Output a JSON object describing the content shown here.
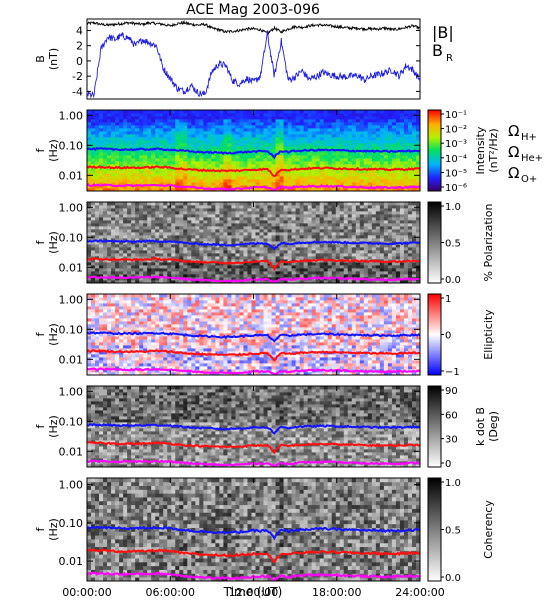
{
  "title": "ACE Mag 2003-096",
  "xaxis": {
    "label": "Time (UT)",
    "ticks": [
      "00:00:00",
      "06:00:00",
      "12:00:00",
      "18:00:00",
      "24:00:00"
    ],
    "range_hours": [
      0,
      24
    ]
  },
  "colors": {
    "B_total": "#000000",
    "B_R": "#1f1fe0",
    "H_plus": "#1414ff",
    "He_plus": "#ff1010",
    "O_plus": "#ff00ff"
  },
  "chart_data": [
    {
      "type": "line",
      "panel": "magnetic-field",
      "ylabel_line1": "B",
      "ylabel_line2": "(nT)",
      "ylim": [
        -5,
        5.5
      ],
      "yticks": [
        "4",
        "2",
        "0",
        "-2",
        "-4"
      ],
      "ytick_values": [
        4,
        2,
        0,
        -2,
        -4
      ],
      "legend": [
        "|B|",
        "B"
      ],
      "legend_subscript": "R",
      "legend_placement": "right",
      "series": [
        {
          "name": "|B|",
          "x": [
            0,
            0.5,
            1,
            1.5,
            2,
            2.5,
            3,
            3.5,
            4,
            4.5,
            5,
            5.5,
            6,
            6.5,
            7,
            7.5,
            8,
            8.5,
            9,
            9.5,
            10,
            10.5,
            11,
            11.5,
            12,
            12.5,
            13,
            13.5,
            14,
            14.5,
            15,
            15.5,
            16,
            16.5,
            17,
            17.5,
            18,
            18.5,
            19,
            19.5,
            20,
            20.5,
            21,
            21.5,
            22,
            22.5,
            23,
            23.5,
            24
          ],
          "values": [
            4.9,
            5.0,
            4.8,
            4.7,
            4.8,
            4.9,
            5.0,
            4.9,
            4.8,
            5.0,
            4.9,
            4.8,
            4.6,
            4.9,
            5.0,
            4.8,
            4.7,
            4.8,
            4.3,
            4.1,
            3.8,
            3.9,
            4.0,
            4.2,
            4.2,
            4.1,
            3.6,
            4.3,
            3.8,
            4.2,
            4.5,
            4.4,
            4.6,
            4.7,
            4.7,
            4.6,
            4.5,
            4.4,
            4.3,
            4.3,
            4.2,
            4.2,
            4.2,
            4.3,
            4.1,
            4.2,
            4.4,
            4.6,
            4.3
          ]
        },
        {
          "name": "B_R",
          "x": [
            0,
            0.5,
            1,
            1.5,
            2,
            2.5,
            3,
            3.5,
            4,
            4.5,
            5,
            5.5,
            6,
            6.5,
            7,
            7.5,
            8,
            8.5,
            9,
            9.5,
            10,
            10.5,
            11,
            11.5,
            12,
            12.5,
            13,
            13.5,
            14,
            14.5,
            15,
            15.5,
            16,
            16.5,
            17,
            17.5,
            18,
            18.5,
            19,
            19.5,
            20,
            20.5,
            21,
            21.5,
            22,
            22.5,
            23,
            23.5,
            24
          ],
          "values": [
            -4.3,
            -4.6,
            1.5,
            3.2,
            2.8,
            3.3,
            3.0,
            2.0,
            2.8,
            2.4,
            2.0,
            -1.0,
            -2.3,
            -3.6,
            -4.0,
            -3.2,
            -4.2,
            -4.4,
            -1.4,
            -0.4,
            -0.6,
            -2.6,
            -3.0,
            -2.3,
            -2.8,
            -2.0,
            3.6,
            -2.0,
            2.6,
            -2.5,
            -2.1,
            -1.3,
            -2.4,
            -2.1,
            -1.5,
            -1.8,
            -2.0,
            -2.1,
            -2.0,
            -1.9,
            -2.5,
            -2.0,
            -1.8,
            -1.5,
            -1.2,
            -2.0,
            -0.6,
            -1.2,
            -2.5
          ]
        }
      ]
    },
    {
      "type": "heatmap",
      "panel": "intensity",
      "ylabel_line1": "f",
      "ylabel_line2": "(Hz)",
      "yscale": "log",
      "ylim": [
        0.003,
        1.5
      ],
      "yticks": [
        "1.00",
        "0.10",
        "0.01"
      ],
      "ytick_values": [
        1,
        0.1,
        0.01
      ],
      "colorbar": {
        "label_line1": "Intensity",
        "label_line2": "(nT²/Hz)",
        "ticks": [
          "10⁻¹",
          "10⁻²",
          "10⁻³",
          "10⁻⁴",
          "10⁻⁵",
          "10⁻⁶"
        ],
        "scale": "rainbow"
      },
      "legend": {
        "h_symbol": "Ω",
        "h_sub": "H+",
        "he_symbol": "Ω",
        "he_sub": "He+",
        "o_symbol": "Ω",
        "o_sub": "O+"
      }
    },
    {
      "type": "heatmap",
      "panel": "polarization",
      "ylabel_line1": "f",
      "ylabel_line2": "(Hz)",
      "yscale": "log",
      "ylim": [
        0.003,
        1.5
      ],
      "yticks": [
        "1.00",
        "0.10",
        "0.01"
      ],
      "ytick_values": [
        1,
        0.1,
        0.01
      ],
      "colorbar": {
        "label_line1": "% Polarization",
        "label_line2": "",
        "ticks": [
          "1.0",
          "0.5",
          "0.0"
        ],
        "scale": "gray"
      }
    },
    {
      "type": "heatmap",
      "panel": "ellipticity",
      "ylabel_line1": "f",
      "ylabel_line2": "(Hz)",
      "yscale": "log",
      "ylim": [
        0.003,
        1.5
      ],
      "yticks": [
        "1.00",
        "0.10",
        "0.01"
      ],
      "ytick_values": [
        1,
        0.1,
        0.01
      ],
      "colorbar": {
        "label_line1": "Ellipticity",
        "label_line2": "",
        "ticks": [
          "1",
          "0",
          "−1"
        ],
        "scale": "bwr"
      }
    },
    {
      "type": "heatmap",
      "panel": "k-dot-b",
      "ylabel_line1": "f",
      "ylabel_line2": "(Hz)",
      "yscale": "log",
      "ylim": [
        0.003,
        1.5
      ],
      "yticks": [
        "1.00",
        "0.10",
        "0.01"
      ],
      "ytick_values": [
        1,
        0.1,
        0.01
      ],
      "colorbar": {
        "label_line1": "k dot B",
        "label_line2": "(Deg)",
        "ticks": [
          "90",
          "60",
          "30",
          "0"
        ],
        "scale": "gray"
      }
    },
    {
      "type": "heatmap",
      "panel": "coherency",
      "ylabel_line1": "f",
      "ylabel_line2": "(Hz)",
      "yscale": "log",
      "ylim": [
        0.003,
        1.5
      ],
      "yticks": [
        "1.00",
        "0.10",
        "0.01"
      ],
      "ytick_values": [
        1,
        0.1,
        0.01
      ],
      "colorbar": {
        "label_line1": "Coherency",
        "label_line2": "",
        "ticks": [
          "1.0",
          "0.5",
          "0.0"
        ],
        "scale": "gray"
      }
    }
  ],
  "gyrofrequency": {
    "x": [
      0,
      1,
      2,
      3,
      4,
      5,
      6,
      7,
      8,
      9,
      10,
      11,
      12,
      13,
      13.5,
      14,
      14.5,
      15,
      16,
      17,
      18,
      19,
      20,
      21,
      22,
      23,
      24
    ],
    "H_plus_hz": [
      0.075,
      0.076,
      0.073,
      0.072,
      0.073,
      0.075,
      0.072,
      0.065,
      0.06,
      0.058,
      0.055,
      0.058,
      0.062,
      0.063,
      0.04,
      0.065,
      0.06,
      0.065,
      0.068,
      0.07,
      0.068,
      0.066,
      0.064,
      0.063,
      0.062,
      0.064,
      0.066
    ],
    "He_plus_hz": [
      0.019,
      0.019,
      0.018,
      0.018,
      0.018,
      0.019,
      0.018,
      0.016,
      0.015,
      0.0145,
      0.014,
      0.0145,
      0.0155,
      0.016,
      0.009,
      0.016,
      0.015,
      0.016,
      0.017,
      0.0175,
      0.017,
      0.0165,
      0.016,
      0.0158,
      0.0155,
      0.016,
      0.0165
    ],
    "O_plus_hz": [
      0.0047,
      0.0047,
      0.0046,
      0.0045,
      0.0046,
      0.0047,
      0.0045,
      0.0041,
      0.0038,
      0.0036,
      0.0035,
      0.0036,
      0.0039,
      0.004,
      0.0032,
      0.0041,
      0.0038,
      0.0041,
      0.0043,
      0.0044,
      0.0043,
      0.0041,
      0.004,
      0.0039,
      0.0039,
      0.004,
      0.0041
    ]
  }
}
